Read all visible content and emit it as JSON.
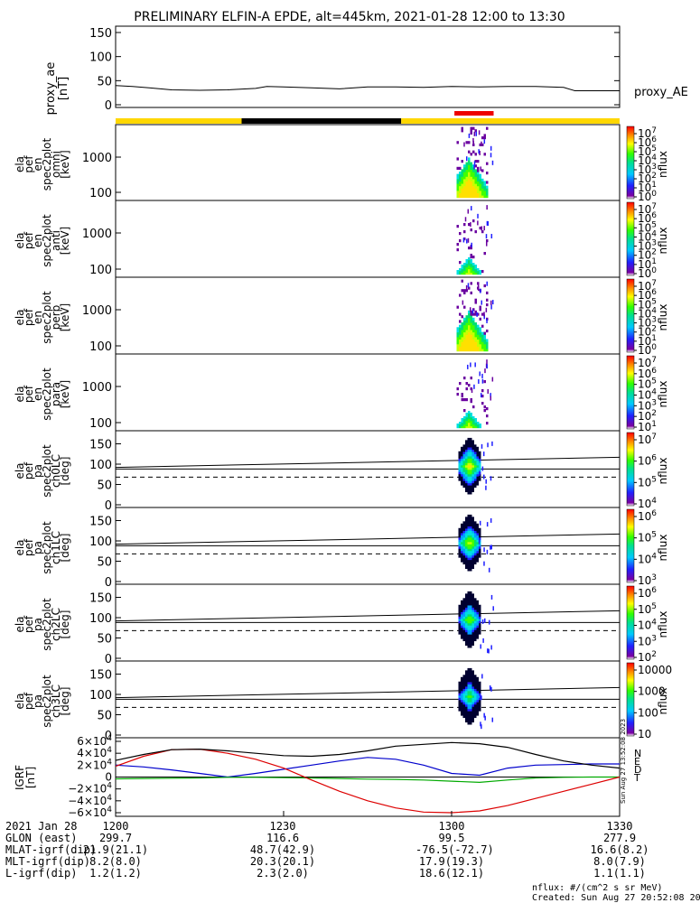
{
  "title": "PRELIMINARY ELFIN-A EPDE, alt=445km, 2021-01-28 12:00 to 13:30",
  "colors": {
    "yellow_bar": "#ffd700",
    "black_bar": "#000000",
    "red_marker": "#ee0000",
    "bx": "#0000cc",
    "by": "#00aa00",
    "bz": "#dd0000",
    "bt": "#000000"
  },
  "chart_data": {
    "type": "spectrogram-stack",
    "time_range_min": [
      0,
      90
    ],
    "bar_segments": [
      {
        "from": 0,
        "to": 22.5,
        "color": "yellow"
      },
      {
        "from": 22.5,
        "to": 51,
        "color": "black"
      },
      {
        "from": 51,
        "to": 90,
        "color": "yellow"
      }
    ],
    "red_marker": [
      60.5,
      67.5
    ],
    "panels": [
      {
        "key": "ae",
        "ylabel": [
          "proxy_ae",
          "[nT]"
        ],
        "yticks": [
          "150",
          "100",
          "50",
          "0"
        ],
        "ylim": [
          0,
          150
        ],
        "side_label": "proxy_AE",
        "series": {
          "t": [
            0,
            3,
            6,
            10,
            15,
            20,
            25,
            27,
            30,
            35,
            40,
            45,
            50,
            55,
            60,
            65,
            70,
            75,
            80,
            82,
            85,
            90
          ],
          "v": [
            40,
            38,
            35,
            31,
            30,
            31,
            34,
            38,
            37,
            35,
            33,
            37,
            37,
            36,
            38,
            37,
            38,
            38,
            36,
            29,
            29,
            29
          ]
        }
      },
      {
        "key": "s1",
        "ylabel": [
          "ela",
          "pef",
          "en",
          "spec2plot",
          "omni",
          "[keV]"
        ],
        "yticks": [
          "1000",
          "100"
        ],
        "zlabel": "nflux",
        "zticks": [
          "10^7",
          "10^6",
          "10^5",
          "10^4",
          "10^3",
          "10^2",
          "10^1",
          "10^0"
        ]
      },
      {
        "key": "s2",
        "ylabel": [
          "ela",
          "pef",
          "en",
          "spec2plot",
          "anti",
          "[keV]"
        ],
        "yticks": [
          "1000",
          "100"
        ],
        "zlabel": "nflux",
        "zticks": [
          "10^7",
          "10^6",
          "10^5",
          "10^4",
          "10^3",
          "10^2",
          "10^1",
          "10^0"
        ]
      },
      {
        "key": "s3",
        "ylabel": [
          "ela",
          "pef",
          "en",
          "spec2plot",
          "perp",
          "[keV]"
        ],
        "yticks": [
          "1000",
          "100"
        ],
        "zlabel": "nflux",
        "zticks": [
          "10^7",
          "10^6",
          "10^5",
          "10^4",
          "10^3",
          "10^2",
          "10^1",
          "10^0"
        ]
      },
      {
        "key": "s4",
        "ylabel": [
          "ela",
          "pef",
          "en",
          "spec2plot",
          "para",
          "[keV]"
        ],
        "yticks": [
          "1000",
          "100"
        ],
        "zlabel": "nflux",
        "zticks": [
          "10^7",
          "10^6",
          "10^5",
          "10^4",
          "10^3",
          "10^2",
          "10^1"
        ]
      },
      {
        "key": "p0",
        "ylabel": [
          "ela",
          "pef",
          "pa",
          "spec2plot",
          "ch0LC",
          "[deg]"
        ],
        "yticks": [
          "150",
          "100",
          "50",
          "0"
        ],
        "zlabel": "nflux",
        "zticks": [
          "10^7",
          "10^6",
          "10^5",
          "10^4"
        ]
      },
      {
        "key": "p1",
        "ylabel": [
          "ela",
          "pef",
          "pa",
          "spec2plot",
          "ch1LC",
          "[deg]"
        ],
        "yticks": [
          "150",
          "100",
          "50",
          "0"
        ],
        "zlabel": "nflux",
        "zticks": [
          "10^6",
          "10^5",
          "10^4",
          "10^3"
        ]
      },
      {
        "key": "p2",
        "ylabel": [
          "ela",
          "pef",
          "pa",
          "spec2plot",
          "ch2LC",
          "[deg]"
        ],
        "yticks": [
          "150",
          "100",
          "50",
          "0"
        ],
        "zlabel": "nflux",
        "zticks": [
          "10^6",
          "10^5",
          "10^4",
          "10^3",
          "10^2"
        ]
      },
      {
        "key": "p3",
        "ylabel": [
          "ela",
          "pef",
          "pa",
          "spec2plot",
          "ch3LC",
          "[deg]"
        ],
        "yticks": [
          "150",
          "100",
          "50",
          "0"
        ],
        "zlabel": "nflux",
        "zticks": [
          "10000",
          "1000",
          "100",
          "10"
        ]
      },
      {
        "key": "igrf",
        "ylabel": [
          "IGRF",
          "[nT]"
        ],
        "yticks": [
          "6×10^4",
          "4×10^4",
          "2×10^4",
          "0",
          "−2×10^4",
          "−4×10^4",
          "−6×10^4"
        ],
        "ylim": [
          -60000,
          60000
        ],
        "series_labels": [
          "N",
          "E",
          "D",
          "T"
        ]
      }
    ],
    "igrf_series": {
      "t": [
        0,
        5,
        10,
        15,
        20,
        25,
        30,
        35,
        40,
        45,
        50,
        55,
        60,
        65,
        70,
        75,
        80,
        85,
        90
      ],
      "bx": [
        20000,
        17000,
        12000,
        6000,
        0,
        6000,
        13000,
        20000,
        27000,
        33000,
        30000,
        20000,
        6000,
        3000,
        15000,
        20000,
        21000,
        22000,
        22000
      ],
      "by": [
        -3000,
        -2500,
        -2000,
        -1500,
        -500,
        -500,
        -1000,
        -1500,
        -2500,
        -3500,
        -4000,
        -5000,
        -7000,
        -9000,
        -5000,
        -1500,
        -500,
        0,
        0
      ],
      "bz": [
        18000,
        35000,
        46000,
        47000,
        40000,
        30000,
        15000,
        -5000,
        -24000,
        -40000,
        -52000,
        -59000,
        -60000,
        -57000,
        -48000,
        -36000,
        -24000,
        -12000,
        0
      ],
      "bt": [
        28000,
        38000,
        46000,
        47000,
        44000,
        40000,
        36000,
        35000,
        38000,
        44000,
        52000,
        55000,
        58000,
        56000,
        50000,
        38000,
        27000,
        20000,
        15000
      ]
    },
    "x_tick_labels": [
      "1200",
      "1230",
      "1300",
      "1330"
    ]
  },
  "footer": {
    "rows": [
      {
        "label": "2021 Jan 28",
        "vals": [
          "1200",
          "1230",
          "1300",
          "1330"
        ]
      },
      {
        "label": "GLON (east)",
        "vals": [
          "299.7",
          "116.6",
          "99.5",
          "277.9"
        ]
      },
      {
        "label": "MLAT-igrf(dip)",
        "vals": [
          "21.9(21.1)",
          "48.7(42.9)",
          "-76.5(-72.7)",
          "16.6(8.2)"
        ]
      },
      {
        "label": "MLT-igrf(dip)",
        "vals": [
          "8.2(8.0)",
          "20.3(20.1)",
          "17.9(19.3)",
          "8.0(7.9)"
        ]
      },
      {
        "label": "L-igrf(dip)",
        "vals": [
          "1.2(1.2)",
          "2.3(2.0)",
          "18.6(12.1)",
          "1.1(1.1)"
        ]
      }
    ],
    "nflux_units": "nflux: #/(cm^2 s sr MeV)",
    "created": "Created: Sun Aug 27 20:52:08 2023",
    "side_stamp": "Sun Aug 27 13:52:08 2023"
  }
}
